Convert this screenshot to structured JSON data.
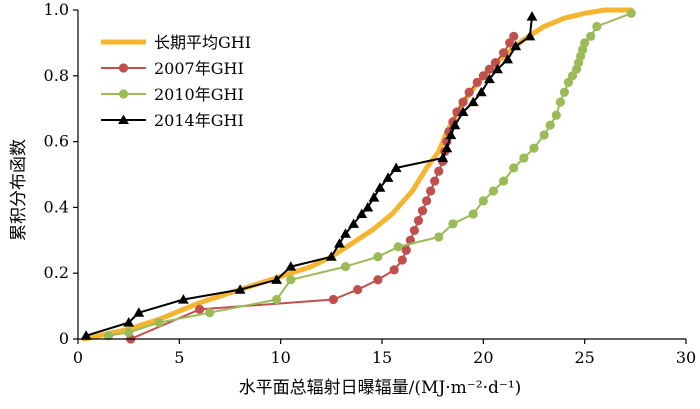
{
  "chart_data": {
    "type": "line",
    "xlabel": "水平面总辐射日曝辐量/(MJ·m⁻²·d⁻¹)",
    "ylabel": "累积分布函数",
    "xlim": [
      0,
      30
    ],
    "ylim": [
      0,
      1.0
    ],
    "x_ticks": [
      0,
      5,
      10,
      15,
      20,
      25,
      30
    ],
    "y_ticks": [
      0,
      0.2,
      0.4,
      0.6,
      0.8,
      1.0
    ],
    "y_tick_labels": [
      "0",
      "0.2",
      "0.4",
      "0.6",
      "0.8",
      "1.0"
    ],
    "legend_position": "top-left",
    "grid": false,
    "series": [
      {
        "name": "长期平均GHI",
        "color": "#F5B530",
        "marker": "none",
        "x": [
          0.3,
          2.5,
          4.0,
          6.0,
          8.0,
          10.0,
          11.5,
          12.5,
          13.5,
          14.5,
          15.5,
          16.5,
          17.2,
          17.8,
          18.2,
          19.0,
          20.0,
          21.0,
          22.0,
          23.0,
          24.0,
          25.0,
          26.0,
          27.3
        ],
        "y": [
          0.0,
          0.03,
          0.06,
          0.11,
          0.15,
          0.19,
          0.22,
          0.25,
          0.29,
          0.33,
          0.38,
          0.45,
          0.52,
          0.57,
          0.63,
          0.72,
          0.8,
          0.86,
          0.91,
          0.95,
          0.975,
          0.99,
          1.0,
          1.0
        ]
      },
      {
        "name": "2007年GHI",
        "color": "#C0504D",
        "marker": "circle",
        "x": [
          2.6,
          6.0,
          12.6,
          13.8,
          14.8,
          15.6,
          16.0,
          16.2,
          16.4,
          16.6,
          16.8,
          17.0,
          17.2,
          17.4,
          17.6,
          17.8,
          18.0,
          18.1,
          18.2,
          18.3,
          18.5,
          18.7,
          19.0,
          19.3,
          19.7,
          20.0,
          20.3,
          20.6,
          21.0,
          21.3,
          21.5
        ],
        "y": [
          0.0,
          0.09,
          0.12,
          0.15,
          0.18,
          0.21,
          0.24,
          0.27,
          0.3,
          0.33,
          0.36,
          0.39,
          0.42,
          0.45,
          0.48,
          0.51,
          0.54,
          0.57,
          0.6,
          0.63,
          0.66,
          0.69,
          0.72,
          0.75,
          0.78,
          0.8,
          0.82,
          0.84,
          0.87,
          0.9,
          0.92
        ]
      },
      {
        "name": "2010年GHI",
        "color": "#9BBB59",
        "marker": "circle",
        "x": [
          1.5,
          2.5,
          4.0,
          6.5,
          9.8,
          10.5,
          13.2,
          14.8,
          15.8,
          17.8,
          18.5,
          19.5,
          20.0,
          20.5,
          21.0,
          21.5,
          22.0,
          22.5,
          23.0,
          23.3,
          23.6,
          23.8,
          24.0,
          24.2,
          24.4,
          24.6,
          24.7,
          24.8,
          24.9,
          25.0,
          25.3,
          25.6,
          27.3
        ],
        "y": [
          0.01,
          0.02,
          0.05,
          0.08,
          0.12,
          0.18,
          0.22,
          0.25,
          0.28,
          0.31,
          0.35,
          0.38,
          0.42,
          0.45,
          0.48,
          0.52,
          0.55,
          0.58,
          0.62,
          0.65,
          0.68,
          0.72,
          0.75,
          0.78,
          0.8,
          0.82,
          0.84,
          0.86,
          0.88,
          0.9,
          0.92,
          0.95,
          0.99
        ]
      },
      {
        "name": "2014年GHI",
        "color": "#000000",
        "marker": "triangle",
        "x": [
          0.4,
          2.5,
          3.0,
          5.2,
          8.0,
          9.8,
          10.5,
          12.5,
          12.9,
          13.2,
          13.6,
          14.0,
          14.3,
          14.6,
          14.9,
          15.3,
          15.7,
          18.0,
          18.2,
          18.4,
          18.6,
          19.0,
          19.5,
          19.9,
          20.3,
          20.7,
          21.2,
          21.6,
          22.3,
          22.4
        ],
        "y": [
          0.01,
          0.05,
          0.08,
          0.12,
          0.15,
          0.18,
          0.22,
          0.25,
          0.29,
          0.32,
          0.35,
          0.38,
          0.4,
          0.43,
          0.46,
          0.49,
          0.52,
          0.55,
          0.58,
          0.62,
          0.65,
          0.69,
          0.72,
          0.75,
          0.79,
          0.82,
          0.85,
          0.89,
          0.92,
          0.98
        ]
      }
    ]
  }
}
